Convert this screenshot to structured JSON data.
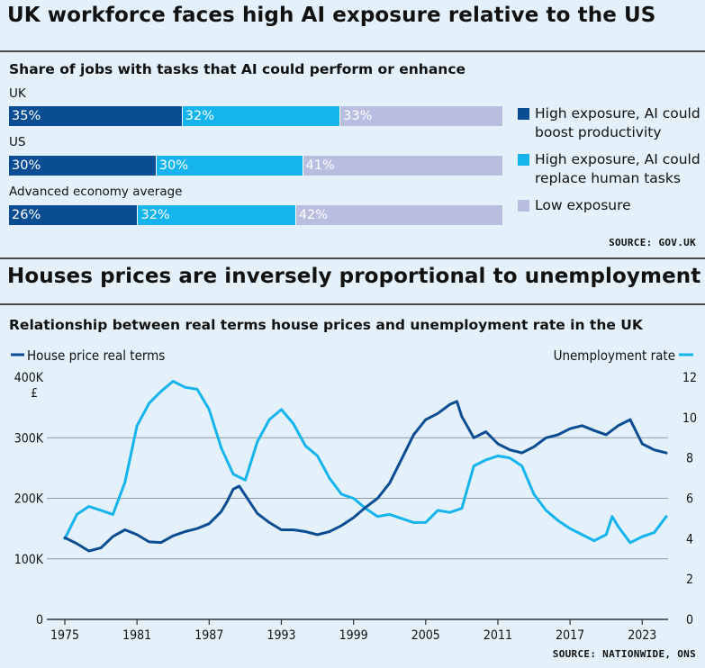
{
  "panel1": {
    "title": "UK workforce faces high AI exposure relative to the US",
    "source": "SOURCE: GOV.UK"
  },
  "panel2": {
    "title": "Houses prices are inversely proportional to unemployment",
    "source": "SOURCE: NATIONWIDE, ONS"
  },
  "colors": {
    "dark_blue": "#0a4d92",
    "light_blue": "#15b4ec",
    "lavender": "#b9bde0",
    "background": "#e4f1fa"
  },
  "chart_data": [
    {
      "type": "bar",
      "orientation": "horizontal-stacked",
      "title": "Share of jobs with tasks that AI could perform or enhance",
      "categories": [
        "UK",
        "US",
        "Advanced economy average"
      ],
      "series": [
        {
          "name": "High exposure, AI could boost productivity",
          "values": [
            35,
            30,
            26
          ],
          "labels": [
            "35%",
            "30%",
            "26%"
          ],
          "color": "#0a4d92"
        },
        {
          "name": "High exposure, AI could replace human tasks",
          "values": [
            32,
            30,
            32
          ],
          "labels": [
            "32%",
            "30%",
            "32%"
          ],
          "color": "#15b4ec"
        },
        {
          "name": "Low exposure",
          "values": [
            33,
            41,
            42
          ],
          "labels": [
            "33%",
            "41%",
            "42%"
          ],
          "color": "#b9bde0"
        }
      ],
      "legend": "right"
    },
    {
      "type": "line",
      "title": "Relationship between real terms house prices and unemployment rate in the UK",
      "x_ticks": [
        "1975",
        "1981",
        "1987",
        "1993",
        "1999",
        "2005",
        "2011",
        "2017",
        "2023"
      ],
      "xlim": [
        1975,
        2025
      ],
      "y_left": {
        "label": "£",
        "ticks": [
          "0",
          "100K",
          "200K",
          "300K",
          "400K"
        ],
        "range": [
          0,
          400000
        ]
      },
      "y_right": {
        "ticks": [
          "0",
          "2",
          "4",
          "6",
          "8",
          "10",
          "12"
        ],
        "range": [
          0,
          12
        ]
      },
      "grid": "horizontal",
      "series": [
        {
          "name": "House price real terms",
          "axis": "left",
          "color": "#0a4d92",
          "x": [
            1975,
            1976,
            1977,
            1978,
            1979,
            1980,
            1981,
            1982,
            1983,
            1984,
            1985,
            1986,
            1987,
            1988,
            1988.5,
            1989,
            1989.5,
            1990,
            1991,
            1992,
            1993,
            1994,
            1995,
            1996,
            1997,
            1998,
            1999,
            2000,
            2001,
            2002,
            2003,
            2004,
            2005,
            2006,
            2007,
            2007.6,
            2008,
            2009,
            2010,
            2011,
            2012,
            2013,
            2014,
            2015,
            2016,
            2017,
            2018,
            2019,
            2020,
            2021,
            2022,
            2023,
            2024,
            2025
          ],
          "values": [
            135000,
            125000,
            113000,
            118000,
            137000,
            148000,
            140000,
            128000,
            127000,
            138000,
            145000,
            150000,
            158000,
            178000,
            195000,
            215000,
            220000,
            205000,
            175000,
            160000,
            148000,
            148000,
            145000,
            140000,
            145000,
            155000,
            168000,
            185000,
            200000,
            225000,
            265000,
            305000,
            330000,
            340000,
            355000,
            360000,
            335000,
            300000,
            310000,
            290000,
            280000,
            275000,
            285000,
            300000,
            305000,
            315000,
            320000,
            312000,
            305000,
            320000,
            330000,
            290000,
            280000,
            275000
          ]
        },
        {
          "name": "Unemployment rate",
          "axis": "right",
          "color": "#15b4ec",
          "x": [
            1975,
            1976,
            1977,
            1978,
            1979,
            1980,
            1981,
            1982,
            1983,
            1984,
            1985,
            1986,
            1987,
            1988,
            1989,
            1990,
            1991,
            1992,
            1993,
            1994,
            1995,
            1996,
            1997,
            1998,
            1999,
            2000,
            2001,
            2002,
            2003,
            2004,
            2005,
            2006,
            2007,
            2008,
            2009,
            2010,
            2011,
            2012,
            2013,
            2014,
            2015,
            2016,
            2017,
            2018,
            2019,
            2020,
            2020.5,
            2021,
            2022,
            2023,
            2024,
            2025
          ],
          "values": [
            4.0,
            5.2,
            5.6,
            5.4,
            5.2,
            6.8,
            9.6,
            10.7,
            11.3,
            11.8,
            11.5,
            11.4,
            10.4,
            8.5,
            7.2,
            6.9,
            8.8,
            9.9,
            10.4,
            9.7,
            8.6,
            8.1,
            7.0,
            6.2,
            6.0,
            5.5,
            5.1,
            5.2,
            5.0,
            4.8,
            4.8,
            5.4,
            5.3,
            5.5,
            7.6,
            7.9,
            8.1,
            8.0,
            7.6,
            6.2,
            5.4,
            4.9,
            4.5,
            4.2,
            3.9,
            4.2,
            5.1,
            4.6,
            3.8,
            4.1,
            4.3,
            5.1
          ]
        }
      ]
    }
  ]
}
